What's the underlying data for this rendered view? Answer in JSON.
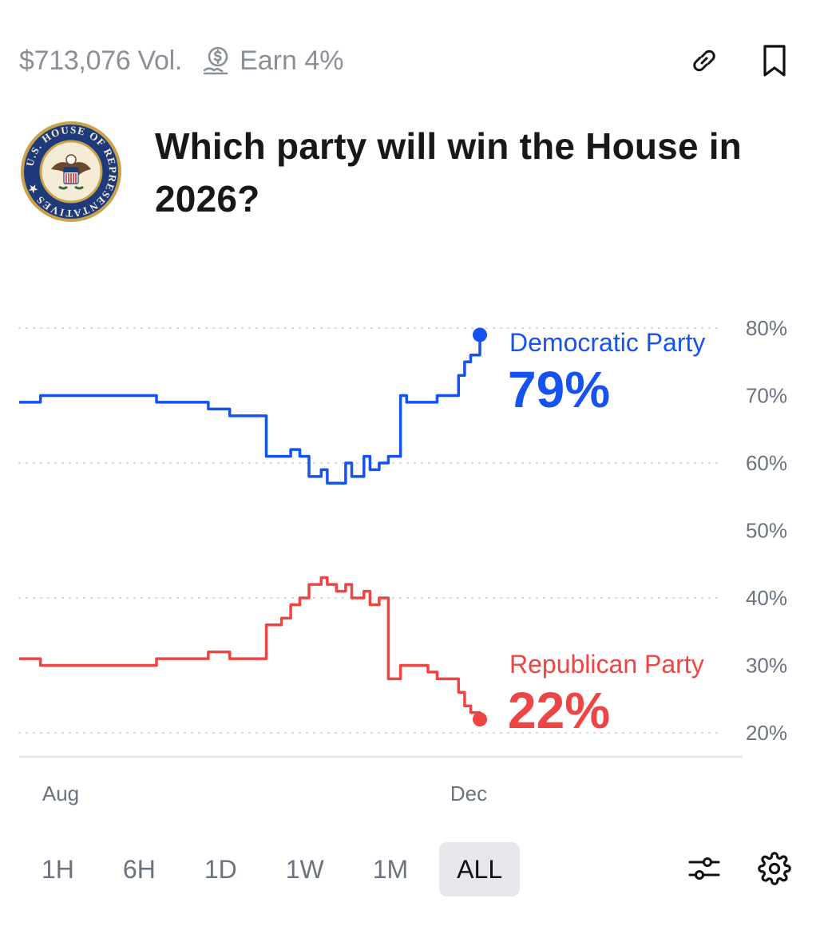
{
  "market": {
    "volume": "$713,076 Vol.",
    "earn": "Earn 4%",
    "title": "Which party will win the House in 2026?"
  },
  "icons": {
    "earn": "coin-growth-icon",
    "link": "link-icon",
    "bookmark": "bookmark-icon",
    "filters": "sliders-icon",
    "settings": "gear-icon",
    "seal": "house-of-representatives-seal"
  },
  "seal_text": "U.S. HOUSE OF REPRESENTATIVES",
  "ranges": [
    "1H",
    "6H",
    "1D",
    "1W",
    "1M",
    "ALL"
  ],
  "active_range": "ALL",
  "colors": {
    "democratic": "#1652f0",
    "republican": "#ef4444",
    "grid": "#d1d5db",
    "axis_text": "#6b7280"
  },
  "chart_data": {
    "type": "line",
    "title": "",
    "xlabel": "",
    "ylabel": "",
    "x_ticks": [
      "Aug",
      "Dec"
    ],
    "y_ticks": [
      "80%",
      "70%",
      "60%",
      "50%",
      "40%",
      "30%",
      "20%"
    ],
    "ylim": [
      20,
      80
    ],
    "grid": "dotted horizontal at 20%, 40%, 60%, 80%",
    "series": [
      {
        "name": "Democratic Party",
        "current_label": "79%",
        "color": "#1652f0",
        "x": [
          "Jul 1",
          "Jul 8",
          "Jul 22",
          "Aug 1",
          "Aug 15",
          "Aug 22",
          "Sep 1",
          "Sep 3",
          "Sep 8",
          "Sep 15",
          "Sep 20",
          "Sep 25",
          "Sep 28",
          "Oct 1",
          "Oct 4",
          "Oct 8",
          "Oct 10",
          "Oct 13",
          "Oct 16",
          "Oct 18",
          "Oct 22",
          "Oct 24",
          "Oct 27",
          "Oct 30",
          "Nov 3",
          "Nov 5",
          "Nov 8",
          "Nov 12",
          "Nov 15",
          "Nov 18",
          "Nov 22",
          "Nov 24",
          "Nov 26",
          "Nov 29"
        ],
        "values": [
          69,
          70,
          70,
          70,
          69,
          69,
          68,
          68,
          67,
          67,
          61,
          61,
          62,
          61,
          58,
          59,
          57,
          57,
          60,
          58,
          61,
          59,
          60,
          61,
          70,
          69,
          69,
          69,
          70,
          70,
          73,
          75,
          76,
          79
        ]
      },
      {
        "name": "Republican Party",
        "current_label": "22%",
        "color": "#ef4444",
        "x": [
          "Jul 1",
          "Jul 8",
          "Jul 22",
          "Aug 1",
          "Aug 15",
          "Aug 22",
          "Sep 1",
          "Sep 3",
          "Sep 8",
          "Sep 15",
          "Sep 20",
          "Sep 25",
          "Sep 28",
          "Oct 1",
          "Oct 4",
          "Oct 8",
          "Oct 10",
          "Oct 13",
          "Oct 16",
          "Oct 18",
          "Oct 22",
          "Oct 24",
          "Oct 27",
          "Oct 30",
          "Nov 3",
          "Nov 5",
          "Nov 8",
          "Nov 12",
          "Nov 15",
          "Nov 18",
          "Nov 22",
          "Nov 24",
          "Nov 26",
          "Nov 29"
        ],
        "values": [
          31,
          30,
          30,
          30,
          31,
          31,
          32,
          32,
          31,
          31,
          36,
          37,
          39,
          40,
          42,
          43,
          42,
          41,
          42,
          40,
          41,
          39,
          40,
          28,
          30,
          30,
          30,
          29,
          28,
          28,
          26,
          24,
          23,
          22
        ]
      }
    ]
  }
}
